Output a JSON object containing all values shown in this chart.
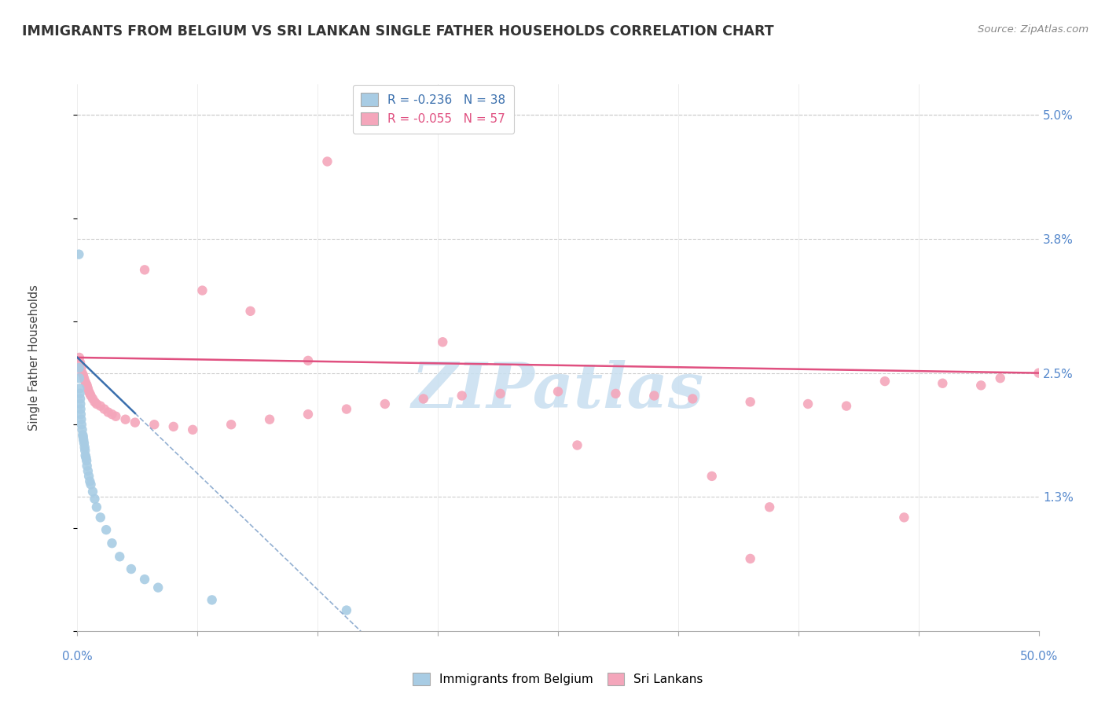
{
  "title": "IMMIGRANTS FROM BELGIUM VS SRI LANKAN SINGLE FATHER HOUSEHOLDS CORRELATION CHART",
  "source": "Source: ZipAtlas.com",
  "ylabel": "Single Father Households",
  "legend_blue": "R = -0.236   N = 38",
  "legend_pink": "R = -0.055   N = 57",
  "legend_label_blue": "Immigrants from Belgium",
  "legend_label_pink": "Sri Lankans",
  "blue_color": "#a8cce4",
  "pink_color": "#f4a6bb",
  "blue_line_color": "#3a6fad",
  "pink_line_color": "#e05080",
  "watermark_color": "#c8dff0",
  "watermark": "ZIPatlas",
  "ytick_vals": [
    1.3,
    2.5,
    3.8,
    5.0
  ],
  "ytick_labels": [
    "1.3%",
    "2.5%",
    "3.8%",
    "5.0%"
  ],
  "xlim": [
    0.0,
    50.0
  ],
  "ylim": [
    0.0,
    5.3
  ],
  "blue_x": [
    0.08,
    0.09,
    0.1,
    0.12,
    0.13,
    0.15,
    0.16,
    0.17,
    0.18,
    0.2,
    0.22,
    0.25,
    0.28,
    0.3,
    0.32,
    0.35,
    0.38,
    0.4,
    0.42,
    0.45,
    0.48,
    0.5,
    0.55,
    0.6,
    0.65,
    0.7,
    0.8,
    0.9,
    1.0,
    1.2,
    1.5,
    1.8,
    2.2,
    2.8,
    3.5,
    4.2,
    7.0,
    14.0
  ],
  "blue_y": [
    3.65,
    2.55,
    2.45,
    2.35,
    2.3,
    2.25,
    2.2,
    2.15,
    2.1,
    2.05,
    2.0,
    1.95,
    1.9,
    1.88,
    1.85,
    1.82,
    1.78,
    1.75,
    1.7,
    1.68,
    1.65,
    1.6,
    1.55,
    1.5,
    1.45,
    1.42,
    1.35,
    1.28,
    1.2,
    1.1,
    0.98,
    0.85,
    0.72,
    0.6,
    0.5,
    0.42,
    0.3,
    0.2
  ],
  "pink_x": [
    0.1,
    0.15,
    0.2,
    0.25,
    0.3,
    0.35,
    0.4,
    0.45,
    0.5,
    0.55,
    0.6,
    0.65,
    0.7,
    0.8,
    0.9,
    1.0,
    1.2,
    1.4,
    1.6,
    1.8,
    2.0,
    2.5,
    3.0,
    4.0,
    5.0,
    6.0,
    8.0,
    10.0,
    12.0,
    14.0,
    16.0,
    18.0,
    20.0,
    22.0,
    25.0,
    28.0,
    30.0,
    32.0,
    35.0,
    38.0,
    40.0,
    42.0,
    45.0,
    47.0,
    48.0,
    50.0,
    3.5,
    6.5,
    9.0,
    13.0,
    19.0,
    26.0,
    33.0,
    43.0,
    12.0,
    36.0,
    35.0
  ],
  "pink_y": [
    2.65,
    2.6,
    2.55,
    2.5,
    2.48,
    2.45,
    2.42,
    2.4,
    2.38,
    2.35,
    2.32,
    2.3,
    2.28,
    2.25,
    2.22,
    2.2,
    2.18,
    2.15,
    2.12,
    2.1,
    2.08,
    2.05,
    2.02,
    2.0,
    1.98,
    1.95,
    2.0,
    2.05,
    2.1,
    2.15,
    2.2,
    2.25,
    2.28,
    2.3,
    2.32,
    2.3,
    2.28,
    2.25,
    2.22,
    2.2,
    2.18,
    2.42,
    2.4,
    2.38,
    2.45,
    2.5,
    3.5,
    3.3,
    3.1,
    4.55,
    2.8,
    1.8,
    1.5,
    1.1,
    2.62,
    1.2,
    0.7
  ]
}
